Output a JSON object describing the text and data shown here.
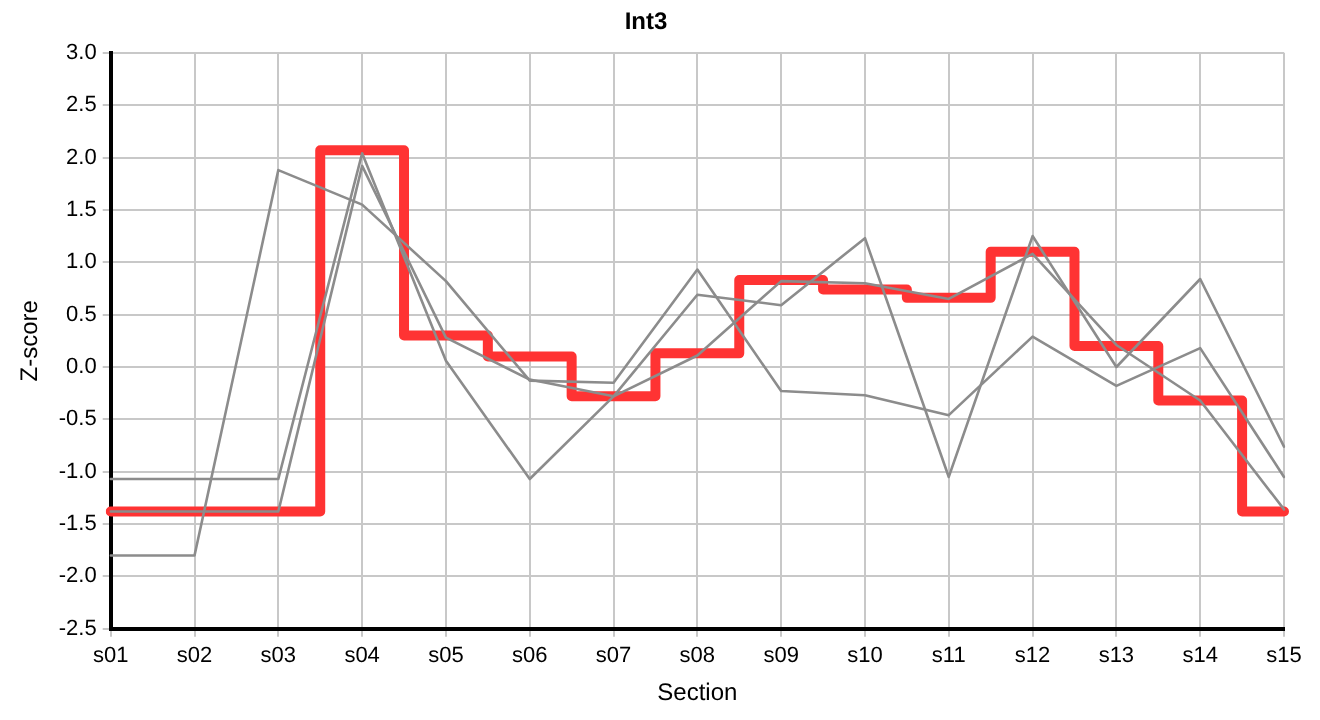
{
  "chart_data": {
    "type": "line",
    "title": "Int3",
    "xlabel": "Section",
    "ylabel": "Z-score",
    "categories": [
      "s01",
      "s02",
      "s03",
      "s04",
      "s05",
      "s06",
      "s07",
      "s08",
      "s09",
      "s10",
      "s11",
      "s12",
      "s13",
      "s14",
      "s15"
    ],
    "series": [
      {
        "type": "line",
        "color": "#8c8c8c",
        "values": [
          -1.8,
          -1.8,
          1.88,
          1.55,
          0.82,
          -0.13,
          -0.15,
          0.93,
          -0.23,
          -0.27,
          -0.46,
          0.29,
          -0.18,
          0.18,
          -1.05
        ]
      },
      {
        "type": "line",
        "color": "#8c8c8c",
        "values": [
          -1.07,
          -1.07,
          -1.07,
          2.04,
          0.06,
          -1.07,
          -0.28,
          0.69,
          0.59,
          1.23,
          -1.05,
          1.25,
          0.0,
          0.84,
          -0.76
        ]
      },
      {
        "type": "line",
        "color": "#8c8c8c",
        "values": [
          -1.38,
          -1.38,
          -1.38,
          1.92,
          0.28,
          -0.12,
          -0.28,
          0.11,
          0.82,
          0.8,
          0.65,
          1.08,
          0.21,
          -0.32,
          -1.36
        ]
      },
      {
        "type": "step",
        "color": "#ff3333",
        "values": [
          -1.38,
          -1.38,
          -1.38,
          2.07,
          0.3,
          0.1,
          -0.28,
          0.13,
          0.83,
          0.74,
          0.66,
          1.1,
          0.2,
          -0.32,
          -1.38
        ]
      }
    ],
    "ylim": [
      -2.5,
      3
    ],
    "yticks": [
      -2.5,
      {
        "value": -2,
        "label": "-2.0"
      },
      -1.5,
      {
        "value": -1,
        "label": "-1.0"
      },
      -0.5,
      {
        "value": 0,
        "label": "0.0"
      },
      0.5,
      {
        "value": 1,
        "label": "1.0"
      },
      1.5,
      {
        "value": 2,
        "label": "2.0"
      },
      2.5,
      {
        "value": 3,
        "label": "3.0"
      }
    ],
    "grid": true,
    "legend": false,
    "marker": "none",
    "line_style": "solid"
  }
}
